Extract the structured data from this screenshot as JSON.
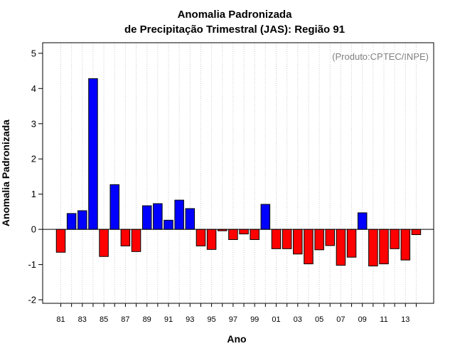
{
  "chart_data": {
    "type": "bar",
    "title_line1": "Anomalia Padronizada",
    "title_line2": "de Precipitação Trimestral (JAS): Região 91",
    "xlabel": "Ano",
    "ylabel": "Anomalia Padronizada",
    "annotation": "(Produto:CPTEC/INPE)",
    "ylim": [
      -2.1,
      5.3
    ],
    "yticks": [
      -2,
      -1,
      0,
      1,
      2,
      3,
      4,
      5
    ],
    "grid": "vertical dotted",
    "categories": [
      "81",
      "82",
      "83",
      "84",
      "85",
      "86",
      "87",
      "88",
      "89",
      "90",
      "91",
      "92",
      "93",
      "94",
      "95",
      "96",
      "97",
      "98",
      "99",
      "00",
      "01",
      "02",
      "03",
      "04",
      "05",
      "06",
      "07",
      "08",
      "09",
      "10",
      "11",
      "12",
      "13",
      "14"
    ],
    "tick_labels": [
      "81",
      "83",
      "85",
      "87",
      "89",
      "91",
      "93",
      "95",
      "97",
      "99",
      "01",
      "03",
      "05",
      "07",
      "09",
      "11",
      "13"
    ],
    "values": [
      -0.65,
      0.45,
      0.53,
      4.28,
      -0.77,
      1.27,
      -0.47,
      -0.63,
      0.67,
      0.73,
      0.26,
      0.83,
      0.59,
      -0.47,
      -0.57,
      -0.04,
      -0.29,
      -0.13,
      -0.29,
      0.71,
      -0.55,
      -0.55,
      -0.7,
      -0.98,
      -0.58,
      -0.46,
      -1.02,
      -0.79,
      0.47,
      -1.04,
      -0.98,
      -0.55,
      -0.87,
      -0.15
    ],
    "colors": {
      "positive": "#0000ff",
      "negative": "#ff0000",
      "grid": "#c8c8c8"
    }
  }
}
